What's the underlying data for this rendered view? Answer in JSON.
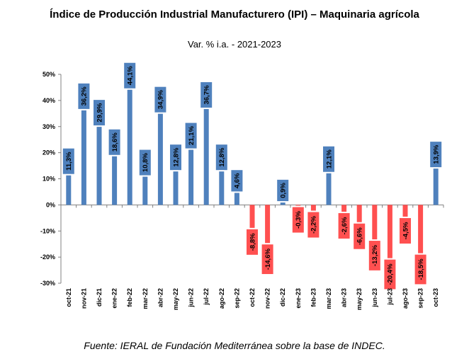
{
  "header": {
    "title": "Índice de Producción Industrial Manufacturero (IPI) – Maquinaria agrícola",
    "subtitle": "Var. % i.a. - 2021-2023"
  },
  "footer": {
    "source": "Fuente: IERAL de Fundación Mediterránea sobre la base de INDEC."
  },
  "chart_data": {
    "type": "bar",
    "title": "Índice de Producción Industrial Manufacturero (IPI) – Maquinaria agrícola",
    "subtitle": "Var. % i.a. - 2021-2023",
    "categories": [
      "oct-21",
      "nov-21",
      "dic-21",
      "ene-22",
      "feb-22",
      "mar-22",
      "abr-22",
      "may-22",
      "jun-22",
      "jul-22",
      "ago-22",
      "sep-22",
      "oct-22",
      "nov-22",
      "dic-22",
      "ene-23",
      "feb-23",
      "mar-23",
      "abr-23",
      "may-23",
      "jun-23",
      "jul-23",
      "ago-23",
      "sep-23",
      "oct-23"
    ],
    "values": [
      11.3,
      36.2,
      29.9,
      18.6,
      44.1,
      10.8,
      34.9,
      12.8,
      21.1,
      36.7,
      12.8,
      4.6,
      -8.8,
      -14.6,
      0.9,
      -0.3,
      -2.2,
      12.1,
      -2.6,
      -6.6,
      -13.2,
      -20.4,
      -4.5,
      -18.5,
      13.9
    ],
    "value_labels": [
      "11,3%",
      "36,2%",
      "29,9%",
      "18,6%",
      "44,1%",
      "10,8%",
      "34,9%",
      "12,8%",
      "21,1%",
      "36,7%",
      "12,8%",
      "4,6%",
      "-8,8%",
      "-14,6%",
      "0,9%",
      "-0,3%",
      "-2,2%",
      "12,1%",
      "-2,6%",
      "-6,6%",
      "-13,2%",
      "-20,4%",
      "-4,5%",
      "-18,5%",
      "13,9%"
    ],
    "ylim": [
      -30,
      50
    ],
    "yticks": [
      50,
      40,
      30,
      20,
      10,
      0,
      -10,
      -20,
      -30
    ],
    "ytick_labels": [
      "50%",
      "40%",
      "30%",
      "20%",
      "10%",
      "0%",
      "-10%",
      "-20%",
      "-30%"
    ],
    "xlabel": "",
    "ylabel": "",
    "grid": false,
    "legend": "none",
    "colors": {
      "positive": "#4F81BD",
      "negative": "#FF5050",
      "label_box_positive": "#4F81BD",
      "label_box_negative": "#FF5050"
    }
  }
}
